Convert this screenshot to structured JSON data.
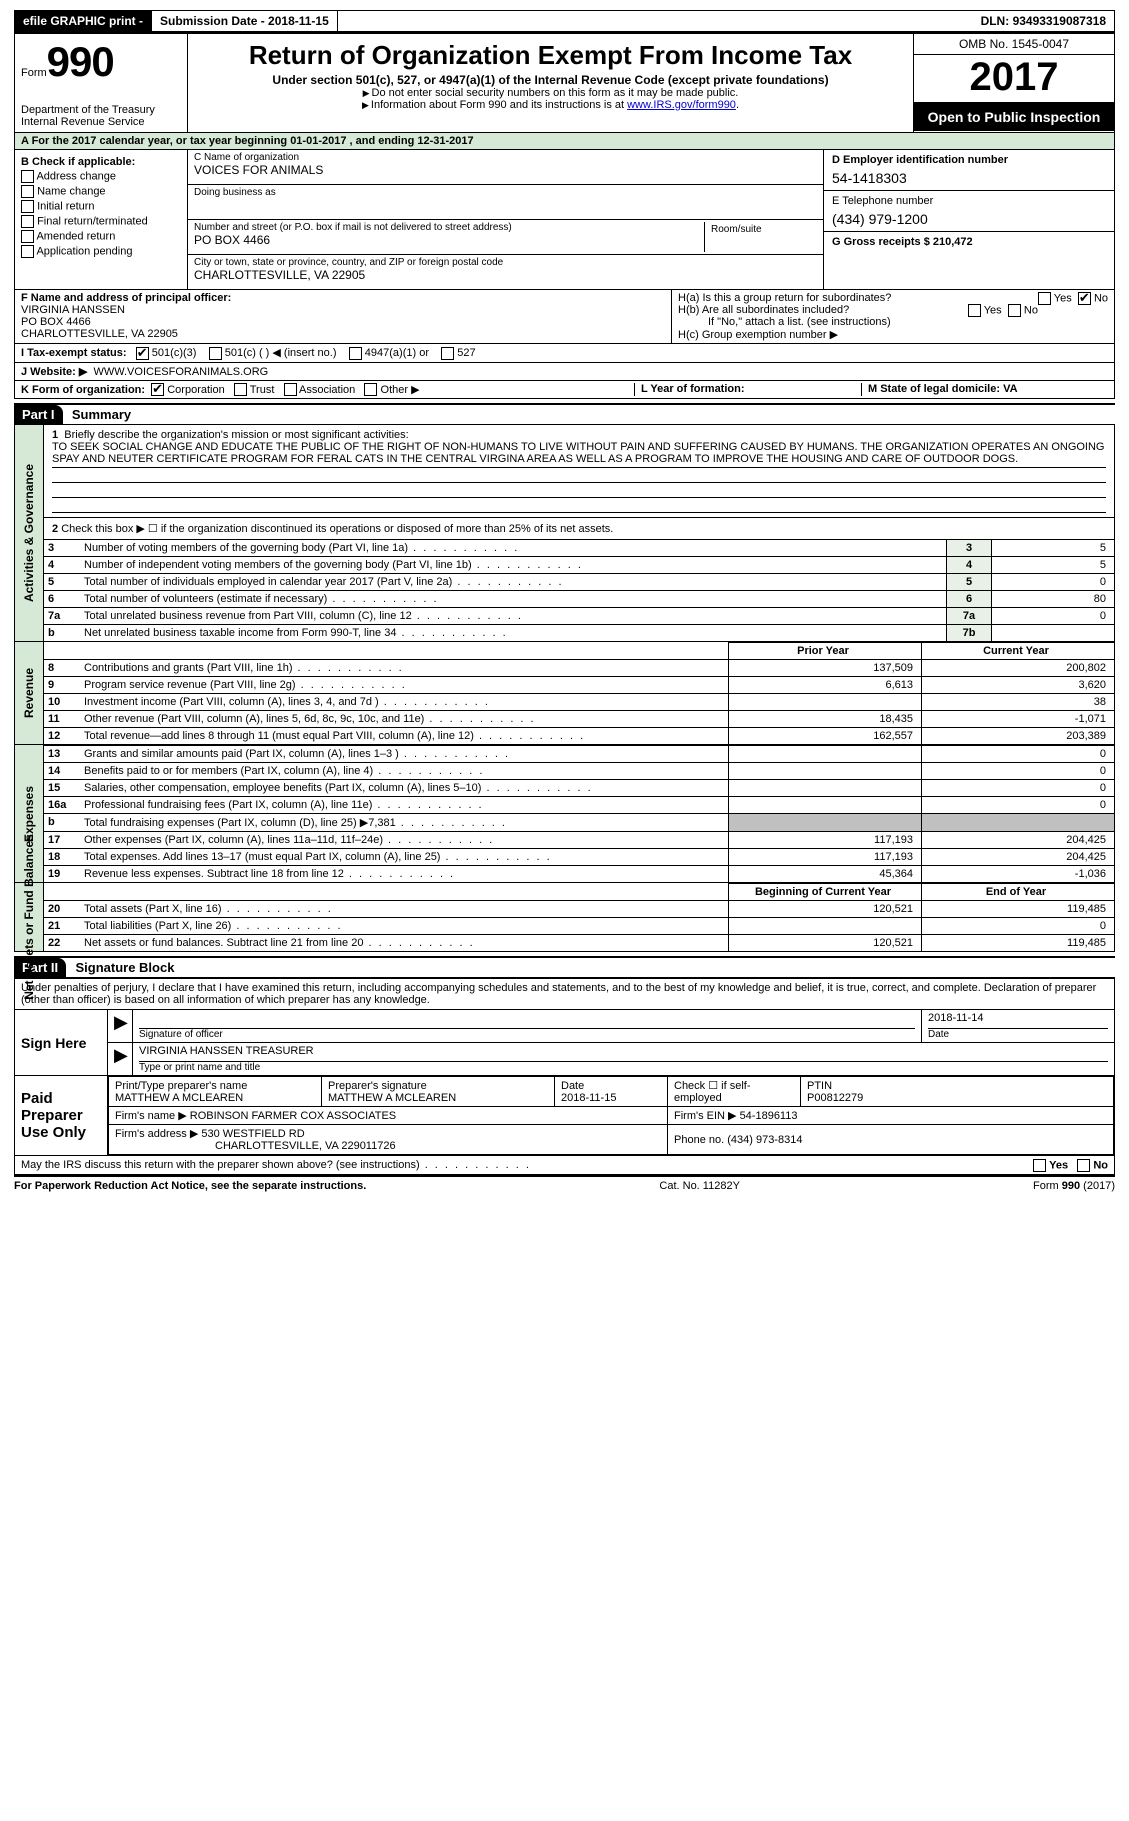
{
  "topbar": {
    "efile": "efile GRAPHIC print -",
    "submission_label": "Submission Date - ",
    "submission_date": "2018-11-15",
    "dln_label": "DLN: ",
    "dln": "93493319087318"
  },
  "header": {
    "form_word": "Form",
    "form_no": "990",
    "dept": "Department of the Treasury\nInternal Revenue Service",
    "title": "Return of Organization Exempt From Income Tax",
    "subtitle": "Under section 501(c), 527, or 4947(a)(1) of the Internal Revenue Code (except private foundations)",
    "note1": "Do not enter social security numbers on this form as it may be made public.",
    "note2_pre": "Information about Form 990 and its instructions is at ",
    "note2_link": "www.IRS.gov/form990",
    "omb": "OMB No. 1545-0047",
    "year": "2017",
    "open": "Open to Public Inspection"
  },
  "lineA": "A  For the 2017 calendar year, or tax year beginning 01-01-2017    , and ending 12-31-2017",
  "boxB": {
    "label": "B Check if applicable:",
    "items": [
      "Address change",
      "Name change",
      "Initial return",
      "Final return/terminated",
      "Amended return",
      "Application pending"
    ]
  },
  "boxC": {
    "name_lbl": "C Name of organization",
    "name": "VOICES FOR ANIMALS",
    "dba_lbl": "Doing business as",
    "dba": "",
    "street_lbl": "Number and street (or P.O. box if mail is not delivered to street address)",
    "street": "PO BOX 4466",
    "suite_lbl": "Room/suite",
    "city_lbl": "City or town, state or province, country, and ZIP or foreign postal code",
    "city": "CHARLOTTESVILLE, VA  22905"
  },
  "boxD": {
    "ein_lbl": "D Employer identification number",
    "ein": "54-1418303",
    "tel_lbl": "E Telephone number",
    "tel": "(434) 979-1200",
    "gross": "G Gross receipts $ 210,472"
  },
  "boxF": {
    "lbl": "F  Name and address of principal officer:",
    "name": "VIRGINIA HANSSEN",
    "addr1": "PO BOX 4466",
    "addr2": "CHARLOTTESVILLE, VA  22905"
  },
  "boxH": {
    "ha": "H(a)  Is this a group return for subordinates?",
    "hb": "H(b)  Are all subordinates included?",
    "hnote": "If \"No,\" attach a list. (see instructions)",
    "hc": "H(c)  Group exemption number ▶",
    "yes": "Yes",
    "no": "No"
  },
  "boxI": {
    "lbl": "I  Tax-exempt status:",
    "o1": "501(c)(3)",
    "o2": "501(c) (   ) ◀ (insert no.)",
    "o3": "4947(a)(1) or",
    "o4": "527"
  },
  "boxJ": {
    "lbl": "J  Website: ▶",
    "val": "WWW.VOICESFORANIMALS.ORG"
  },
  "boxK": {
    "lbl": "K Form of organization:",
    "o1": "Corporation",
    "o2": "Trust",
    "o3": "Association",
    "o4": "Other ▶",
    "l_lbl": "L Year of formation:",
    "m_lbl": "M State of legal domicile: VA"
  },
  "partI": {
    "hdr": "Part I",
    "title": "Summary",
    "q1_lbl": "1",
    "q1_pre": "Briefly describe the organization's mission or most significant activities:",
    "q1_text": "TO SEEK SOCIAL CHANGE AND EDUCATE THE PUBLIC OF THE RIGHT OF NON-HUMANS TO LIVE WITHOUT PAIN AND SUFFERING CAUSED BY HUMANS. THE ORGANIZATION OPERATES AN ONGOING SPAY AND NEUTER CERTIFICATE PROGRAM FOR FERAL CATS IN THE CENTRAL VIRGINA AREA AS WELL AS A PROGRAM TO IMPROVE THE HOUSING AND CARE OF OUTDOOR DOGS.",
    "q2": "Check this box ▶ ☐  if the organization discontinued its operations or disposed of more than 25% of its net assets.",
    "gov_rows": [
      {
        "n": "3",
        "d": "Number of voting members of the governing body (Part VI, line 1a)",
        "b": "3",
        "v": "5"
      },
      {
        "n": "4",
        "d": "Number of independent voting members of the governing body (Part VI, line 1b)",
        "b": "4",
        "v": "5"
      },
      {
        "n": "5",
        "d": "Total number of individuals employed in calendar year 2017 (Part V, line 2a)",
        "b": "5",
        "v": "0"
      },
      {
        "n": "6",
        "d": "Total number of volunteers (estimate if necessary)",
        "b": "6",
        "v": "80"
      },
      {
        "n": "7a",
        "d": "Total unrelated business revenue from Part VIII, column (C), line 12",
        "b": "7a",
        "v": "0"
      },
      {
        "n": "b",
        "d": "Net unrelated business taxable income from Form 990-T, line 34",
        "b": "7b",
        "v": ""
      }
    ],
    "col_prior": "Prior Year",
    "col_curr": "Current Year",
    "rev_rows": [
      {
        "n": "8",
        "d": "Contributions and grants (Part VIII, line 1h)",
        "p": "137,509",
        "c": "200,802"
      },
      {
        "n": "9",
        "d": "Program service revenue (Part VIII, line 2g)",
        "p": "6,613",
        "c": "3,620"
      },
      {
        "n": "10",
        "d": "Investment income (Part VIII, column (A), lines 3, 4, and 7d )",
        "p": "",
        "c": "38"
      },
      {
        "n": "11",
        "d": "Other revenue (Part VIII, column (A), lines 5, 6d, 8c, 9c, 10c, and 11e)",
        "p": "18,435",
        "c": "-1,071"
      },
      {
        "n": "12",
        "d": "Total revenue—add lines 8 through 11 (must equal Part VIII, column (A), line 12)",
        "p": "162,557",
        "c": "203,389"
      }
    ],
    "exp_rows": [
      {
        "n": "13",
        "d": "Grants and similar amounts paid (Part IX, column (A), lines 1–3 )",
        "p": "",
        "c": "0"
      },
      {
        "n": "14",
        "d": "Benefits paid to or for members (Part IX, column (A), line 4)",
        "p": "",
        "c": "0"
      },
      {
        "n": "15",
        "d": "Salaries, other compensation, employee benefits (Part IX, column (A), lines 5–10)",
        "p": "",
        "c": "0"
      },
      {
        "n": "16a",
        "d": "Professional fundraising fees (Part IX, column (A), line 11e)",
        "p": "",
        "c": "0"
      },
      {
        "n": "b",
        "d": "Total fundraising expenses (Part IX, column (D), line 25) ▶7,381",
        "p": "GRAY",
        "c": "GRAY"
      },
      {
        "n": "17",
        "d": "Other expenses (Part IX, column (A), lines 11a–11d, 11f–24e)",
        "p": "117,193",
        "c": "204,425"
      },
      {
        "n": "18",
        "d": "Total expenses. Add lines 13–17 (must equal Part IX, column (A), line 25)",
        "p": "117,193",
        "c": "204,425"
      },
      {
        "n": "19",
        "d": "Revenue less expenses. Subtract line 18 from line 12",
        "p": "45,364",
        "c": "-1,036"
      }
    ],
    "col_beg": "Beginning of Current Year",
    "col_end": "End of Year",
    "na_rows": [
      {
        "n": "20",
        "d": "Total assets (Part X, line 16)",
        "p": "120,521",
        "c": "119,485"
      },
      {
        "n": "21",
        "d": "Total liabilities (Part X, line 26)",
        "p": "",
        "c": "0"
      },
      {
        "n": "22",
        "d": "Net assets or fund balances. Subtract line 21 from line 20",
        "p": "120,521",
        "c": "119,485"
      }
    ]
  },
  "partII": {
    "hdr": "Part II",
    "title": "Signature Block",
    "declare": "Under penalties of perjury, I declare that I have examined this return, including accompanying schedules and statements, and to the best of my knowledge and belief, it is true, correct, and complete. Declaration of preparer (other than officer) is based on all information of which preparer has any knowledge.",
    "sign_here": "Sign Here",
    "sig_officer_lbl": "Signature of officer",
    "sig_date": "2018-11-14",
    "date_lbl": "Date",
    "name_title": "VIRGINIA HANSSEN TREASURER",
    "name_lbl": "Type or print name and title",
    "paid": "Paid Preparer Use Only",
    "prep_name_lbl": "Print/Type preparer's name",
    "prep_name": "MATTHEW A MCLEAREN",
    "prep_sig_lbl": "Preparer's signature",
    "prep_sig": "MATTHEW A MCLEAREN",
    "prep_date_lbl": "Date",
    "prep_date": "2018-11-15",
    "self_emp": "Check ☐ if self-employed",
    "ptin_lbl": "PTIN",
    "ptin": "P00812279",
    "firm_name_lbl": "Firm's name    ▶",
    "firm_name": "ROBINSON FARMER COX ASSOCIATES",
    "firm_ein_lbl": "Firm's EIN ▶",
    "firm_ein": "54-1896113",
    "firm_addr_lbl": "Firm's address ▶",
    "firm_addr1": "530 WESTFIELD RD",
    "firm_addr2": "CHARLOTTESVILLE, VA  229011726",
    "firm_phone_lbl": "Phone no.",
    "firm_phone": "(434) 973-8314",
    "discuss": "May the IRS discuss this return with the preparer shown above? (see instructions)",
    "yes": "Yes",
    "no": "No"
  },
  "footer": {
    "pra": "For Paperwork Reduction Act Notice, see the separate instructions.",
    "cat": "Cat. No. 11282Y",
    "form": "Form 990 (2017)"
  },
  "vtabs": {
    "gov": "Activities & Governance",
    "rev": "Revenue",
    "exp": "Expenses",
    "na": "Net Assets or Fund Balances"
  }
}
